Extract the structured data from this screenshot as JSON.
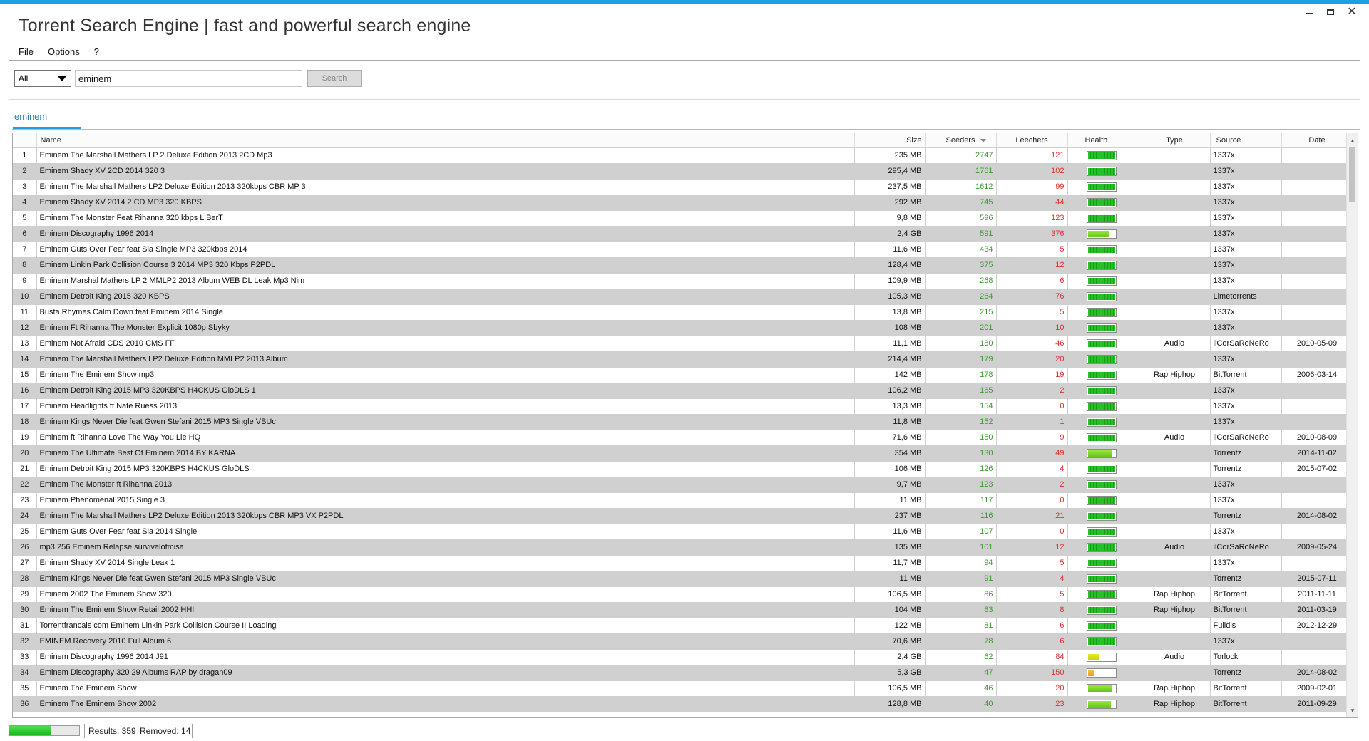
{
  "window": {
    "title": "Torrent Search Engine | fast and powerful search engine",
    "controls": [
      "minimize-icon",
      "maximize-icon",
      "close-icon"
    ],
    "close_glyph": "✕"
  },
  "menu": [
    "File",
    "Options",
    "?"
  ],
  "search": {
    "category": "All",
    "query": "eminem",
    "button_label": "Search"
  },
  "tabs": [
    {
      "label": "eminem",
      "active": true
    }
  ],
  "colors": {
    "accent": "#1ba1e2",
    "seeders": "#3c9a30",
    "leechers": "#e03030",
    "row_alt": "#d0d0d0"
  },
  "table": {
    "columns": [
      "Name",
      "Size",
      "Seeders",
      "Leechers",
      "Health",
      "Type",
      "Source",
      "Date"
    ],
    "sorted_column": "Seeders",
    "rows": [
      {
        "n": "1",
        "name": "Eminem The Marshall Mathers LP 2 Deluxe Edition 2013 2CD Mp3",
        "size": "235 MB",
        "seeders": "2747",
        "leechers": "121",
        "health": 1.0,
        "type": "",
        "source": "1337x",
        "date": ""
      },
      {
        "n": "2",
        "name": "Eminem Shady XV 2CD 2014 320 3",
        "size": "295,4 MB",
        "seeders": "1761",
        "leechers": "102",
        "health": 1.0,
        "type": "",
        "source": "1337x",
        "date": ""
      },
      {
        "n": "3",
        "name": "Eminem The Marshall Mathers LP2 Deluxe Edition 2013 320kbps CBR MP 3",
        "size": "237,5 MB",
        "seeders": "1612",
        "leechers": "99",
        "health": 1.0,
        "type": "",
        "source": "1337x",
        "date": ""
      },
      {
        "n": "4",
        "name": "Eminem Shady XV 2014 2 CD MP3 320 KBPS",
        "size": "292 MB",
        "seeders": "745",
        "leechers": "44",
        "health": 1.0,
        "type": "",
        "source": "1337x",
        "date": ""
      },
      {
        "n": "5",
        "name": "Eminem The Monster Feat Rihanna 320 kbps L BerT",
        "size": "9,8 MB",
        "seeders": "596",
        "leechers": "123",
        "health": 1.0,
        "type": "",
        "source": "1337x",
        "date": ""
      },
      {
        "n": "6",
        "name": "Eminem Discography 1996 2014",
        "size": "2,4 GB",
        "seeders": "591",
        "leechers": "376",
        "health": 0.8,
        "type": "",
        "source": "1337x",
        "date": ""
      },
      {
        "n": "7",
        "name": "Eminem Guts Over Fear feat Sia Single MP3 320kbps 2014",
        "size": "11,6 MB",
        "seeders": "434",
        "leechers": "5",
        "health": 1.0,
        "type": "",
        "source": "1337x",
        "date": ""
      },
      {
        "n": "8",
        "name": "Eminem Linkin Park Collision Course 3 2014 MP3 320 Kbps P2PDL",
        "size": "128,4 MB",
        "seeders": "375",
        "leechers": "12",
        "health": 1.0,
        "type": "",
        "source": "1337x",
        "date": ""
      },
      {
        "n": "9",
        "name": "Eminem Marshal Mathers LP 2 MMLP2 2013 Album WEB DL Leak Mp3 Nim",
        "size": "109,9 MB",
        "seeders": "268",
        "leechers": "6",
        "health": 1.0,
        "type": "",
        "source": "1337x",
        "date": ""
      },
      {
        "n": "10",
        "name": "Eminem Detroit King 2015 320 KBPS",
        "size": "105,3 MB",
        "seeders": "264",
        "leechers": "76",
        "health": 1.0,
        "type": "",
        "source": "Limetorrents",
        "date": ""
      },
      {
        "n": "11",
        "name": "Busta Rhymes Calm Down feat Eminem 2014 Single",
        "size": "13,8 MB",
        "seeders": "215",
        "leechers": "5",
        "health": 1.0,
        "type": "",
        "source": "1337x",
        "date": ""
      },
      {
        "n": "12",
        "name": "Eminem Ft Rihanna The Monster Explicit 1080p Sbyky",
        "size": "108 MB",
        "seeders": "201",
        "leechers": "10",
        "health": 1.0,
        "type": "",
        "source": "1337x",
        "date": ""
      },
      {
        "n": "13",
        "name": "Eminem Not Afraid CDS 2010 CMS FF",
        "size": "11,1 MB",
        "seeders": "180",
        "leechers": "46",
        "health": 1.0,
        "type": "Audio",
        "source": "ilCorSaRoNeRo",
        "date": "2010-05-09"
      },
      {
        "n": "14",
        "name": "Eminem The Marshall Mathers LP2 Deluxe Edition MMLP2 2013 Album",
        "size": "214,4 MB",
        "seeders": "179",
        "leechers": "20",
        "health": 1.0,
        "type": "",
        "source": "1337x",
        "date": ""
      },
      {
        "n": "15",
        "name": "Eminem The Eminem Show mp3",
        "size": "142 MB",
        "seeders": "178",
        "leechers": "19",
        "health": 1.0,
        "type": "Rap Hiphop",
        "source": "BitTorrent",
        "date": "2006-03-14"
      },
      {
        "n": "16",
        "name": "Eminem Detroit King 2015 MP3 320KBPS H4CKUS GloDLS 1",
        "size": "106,2 MB",
        "seeders": "165",
        "leechers": "2",
        "health": 1.0,
        "type": "",
        "source": "1337x",
        "date": ""
      },
      {
        "n": "17",
        "name": "Eminem Headlights ft Nate Ruess 2013",
        "size": "13,3 MB",
        "seeders": "154",
        "leechers": "0",
        "health": 1.0,
        "type": "",
        "source": "1337x",
        "date": ""
      },
      {
        "n": "18",
        "name": "Eminem Kings Never Die feat Gwen Stefani 2015 MP3 Single VBUc",
        "size": "11,8 MB",
        "seeders": "152",
        "leechers": "1",
        "health": 1.0,
        "type": "",
        "source": "1337x",
        "date": ""
      },
      {
        "n": "19",
        "name": "Eminem ft Rihanna Love The Way You Lie HQ",
        "size": "71,6 MB",
        "seeders": "150",
        "leechers": "9",
        "health": 1.0,
        "type": "Audio",
        "source": "ilCorSaRoNeRo",
        "date": "2010-08-09"
      },
      {
        "n": "20",
        "name": "Eminem The Ultimate Best Of Eminem 2014 BY KARNA",
        "size": "354 MB",
        "seeders": "130",
        "leechers": "49",
        "health": 0.9,
        "type": "",
        "source": "Torrentz",
        "date": "2014-11-02"
      },
      {
        "n": "21",
        "name": "Eminem Detroit King 2015 MP3 320KBPS H4CKUS GloDLS",
        "size": "106 MB",
        "seeders": "126",
        "leechers": "4",
        "health": 1.0,
        "type": "",
        "source": "Torrentz",
        "date": "2015-07-02"
      },
      {
        "n": "22",
        "name": "Eminem The Monster ft Rihanna 2013",
        "size": "9,7 MB",
        "seeders": "123",
        "leechers": "2",
        "health": 1.0,
        "type": "",
        "source": "1337x",
        "date": ""
      },
      {
        "n": "23",
        "name": "Eminem Phenomenal 2015 Single 3",
        "size": "11 MB",
        "seeders": "117",
        "leechers": "0",
        "health": 1.0,
        "type": "",
        "source": "1337x",
        "date": ""
      },
      {
        "n": "24",
        "name": "Eminem The Marshall Mathers LP2 Deluxe Edition 2013 320kbps CBR MP3 VX P2PDL",
        "size": "237 MB",
        "seeders": "116",
        "leechers": "21",
        "health": 1.0,
        "type": "",
        "source": "Torrentz",
        "date": "2014-08-02"
      },
      {
        "n": "25",
        "name": "Eminem Guts Over Fear feat Sia 2014 Single",
        "size": "11,6 MB",
        "seeders": "107",
        "leechers": "0",
        "health": 1.0,
        "type": "",
        "source": "1337x",
        "date": ""
      },
      {
        "n": "26",
        "name": "mp3 256 Eminem Relapse survivalofmisa",
        "size": "135 MB",
        "seeders": "101",
        "leechers": "12",
        "health": 1.0,
        "type": "Audio",
        "source": "ilCorSaRoNeRo",
        "date": "2009-05-24"
      },
      {
        "n": "27",
        "name": "Eminem Shady XV 2014 Single Leak 1",
        "size": "11,7 MB",
        "seeders": "94",
        "leechers": "5",
        "health": 1.0,
        "type": "",
        "source": "1337x",
        "date": ""
      },
      {
        "n": "28",
        "name": "Eminem Kings Never Die feat Gwen Stefani 2015 MP3 Single VBUc",
        "size": "11 MB",
        "seeders": "91",
        "leechers": "4",
        "health": 1.0,
        "type": "",
        "source": "Torrentz",
        "date": "2015-07-11"
      },
      {
        "n": "29",
        "name": "Eminem 2002 The Eminem Show 320",
        "size": "106,5 MB",
        "seeders": "86",
        "leechers": "5",
        "health": 1.0,
        "type": "Rap Hiphop",
        "source": "BitTorrent",
        "date": "2011-11-11"
      },
      {
        "n": "30",
        "name": "Eminem The Eminem Show Retail 2002 HHI",
        "size": "104 MB",
        "seeders": "83",
        "leechers": "8",
        "health": 1.0,
        "type": "Rap Hiphop",
        "source": "BitTorrent",
        "date": "2011-03-19"
      },
      {
        "n": "31",
        "name": "Torrentfrancais com Eminem Linkin Park Collision Course II Loading",
        "size": "122 MB",
        "seeders": "81",
        "leechers": "6",
        "health": 1.0,
        "type": "",
        "source": "Fulldls",
        "date": "2012-12-29"
      },
      {
        "n": "32",
        "name": "EMINEM Recovery 2010 Full Album 6",
        "size": "70,6 MB",
        "seeders": "78",
        "leechers": "6",
        "health": 1.0,
        "type": "",
        "source": "1337x",
        "date": ""
      },
      {
        "n": "33",
        "name": "Eminem Discography 1996 2014 J91",
        "size": "2,4 GB",
        "seeders": "62",
        "leechers": "84",
        "health": 0.45,
        "type": "Audio",
        "source": "Torlock",
        "date": ""
      },
      {
        "n": "34",
        "name": "Eminem Discography 320 29 Albums RAP by dragan09",
        "size": "5,3 GB",
        "seeders": "47",
        "leechers": "150",
        "health": 0.25,
        "type": "",
        "source": "Torrentz",
        "date": "2014-08-02"
      },
      {
        "n": "35",
        "name": "Eminem The Eminem Show",
        "size": "106,5 MB",
        "seeders": "46",
        "leechers": "20",
        "health": 0.9,
        "type": "Rap Hiphop",
        "source": "BitTorrent",
        "date": "2009-02-01"
      },
      {
        "n": "36",
        "name": "Eminem The Eminem Show 2002",
        "size": "128,8 MB",
        "seeders": "40",
        "leechers": "23",
        "health": 0.85,
        "type": "Rap Hiphop",
        "source": "BitTorrent",
        "date": "2011-09-29"
      }
    ]
  },
  "status": {
    "progress": 0.6,
    "results_text": "Results: 359",
    "removed_text": "Removed: 14"
  }
}
